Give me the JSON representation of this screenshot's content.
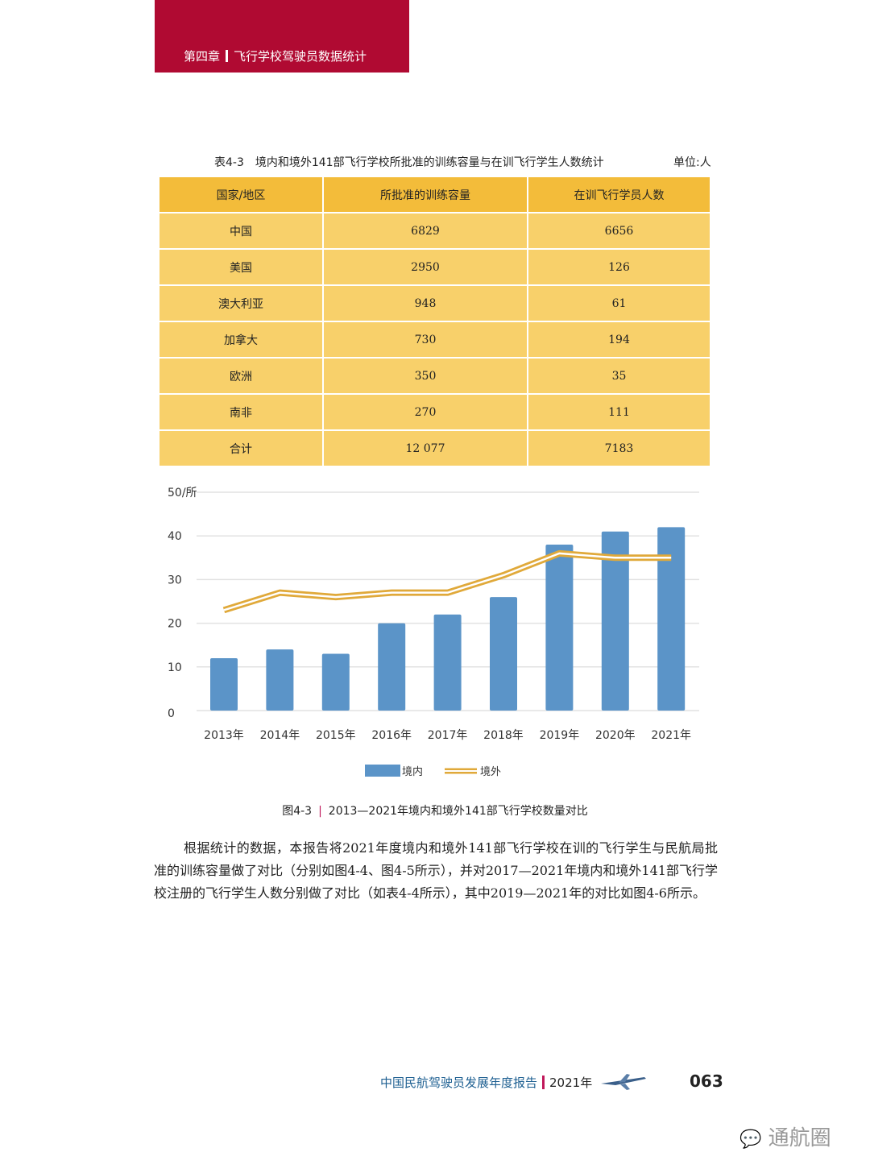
{
  "header": {
    "chapter": "第四章",
    "title": "飞行学校驾驶员数据统计"
  },
  "table": {
    "caption": "表4-3　境内和境外141部飞行学校所批准的训练容量与在训飞行学生人数统计",
    "unit": "单位:人",
    "columns": [
      "国家/地区",
      "所批准的训练容量",
      "在训飞行学员人数"
    ],
    "rows": [
      [
        "中国",
        "6829",
        "6656"
      ],
      [
        "美国",
        "2950",
        "126"
      ],
      [
        "澳大利亚",
        "948",
        "61"
      ],
      [
        "加拿大",
        "730",
        "194"
      ],
      [
        "欧洲",
        "350",
        "35"
      ],
      [
        "南非",
        "270",
        "111"
      ],
      [
        "合计",
        "12 077",
        "7183"
      ]
    ]
  },
  "chart_data": {
    "type": "bar",
    "title": "2013—2021年境内和境外141部飞行学校数量对比",
    "figure_label": "图4-3",
    "ylabel": "所",
    "ylim": [
      0,
      50
    ],
    "yticks": [
      "0",
      "10",
      "20",
      "30",
      "40",
      "50/所"
    ],
    "categories": [
      "2013年",
      "2014年",
      "2015年",
      "2016年",
      "2017年",
      "2018年",
      "2019年",
      "2020年",
      "2021年"
    ],
    "series": [
      {
        "name": "境内",
        "kind": "bar",
        "color": "#5b94c8",
        "values": [
          12,
          14,
          13,
          20,
          22,
          26,
          38,
          41,
          42
        ]
      },
      {
        "name": "境外",
        "kind": "line",
        "color": "#e0a93a",
        "values": [
          23,
          27,
          26,
          27,
          27,
          31,
          36,
          35,
          35
        ]
      }
    ],
    "legend": "bottom",
    "grid": true
  },
  "body": "根据统计的数据，本报告将2021年度境内和境外141部飞行学校在训的飞行学生与民航局批准的训练容量做了对比（分别如图4-4、图4-5所示），并对2017—2021年境内和境外141部飞行学校注册的飞行学生人数分别做了对比（如表4-4所示），其中2019—2021年的对比如图4-6所示。",
  "footer": {
    "report": "中国民航驾驶员发展年度报告",
    "year": "2021年",
    "page": "063"
  },
  "watermark": "通航圈"
}
